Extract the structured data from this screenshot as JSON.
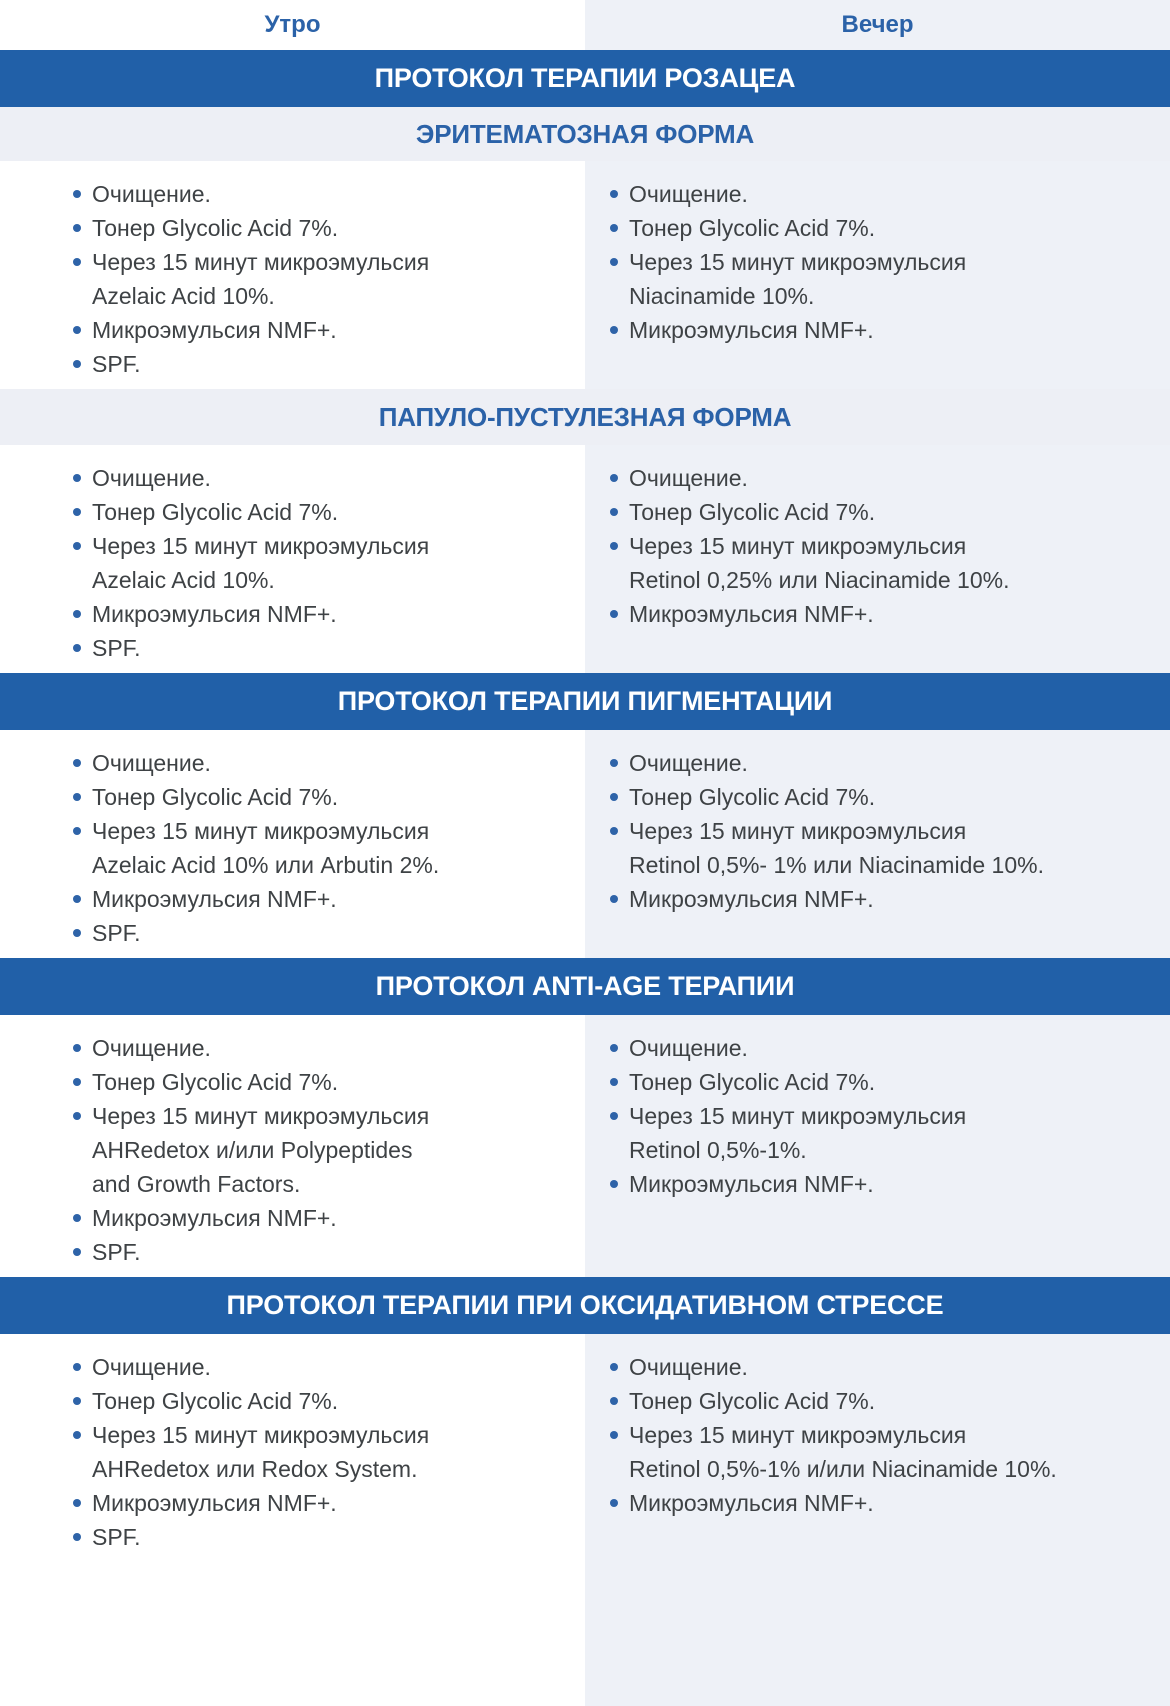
{
  "columns": {
    "morning": "Утро",
    "evening": "Вечер"
  },
  "banners": {
    "rosacea": "ПРОТОКОЛ ТЕРАПИИ РОЗАЦЕА",
    "pigmentation": "ПРОТОКОЛ ТЕРАПИИ ПИГМЕНТАЦИИ",
    "antiage": "ПРОТОКОЛ ANTI-AGE ТЕРАПИИ",
    "oxidative": "ПРОТОКОЛ ТЕРАПИИ ПРИ ОКСИДАТИВНОМ СТРЕССЕ"
  },
  "subheaders": {
    "erythematous": "ЭРИТЕМАТОЗНАЯ ФОРМА",
    "papulopustular": "ПАПУЛО-ПУСТУЛЕЗНАЯ ФОРМА"
  },
  "protocol_rows": {
    "rosacea_erythematous": {
      "morning": [
        "Очищение.",
        "Тонер Glycolic Acid 7%.",
        "Через 15 минут микроэмульсия\nAzelaic Acid 10%.",
        "Микроэмульсия NMF+.",
        "SPF."
      ],
      "evening": [
        "Очищение.",
        "Тонер Glycolic Acid 7%.",
        "Через 15 минут микроэмульсия\nNiacinamide 10%.",
        "Микроэмульсия NMF+."
      ]
    },
    "rosacea_papulopustular": {
      "morning": [
        "Очищение.",
        "Тонер Glycolic Acid 7%.",
        "Через 15 минут микроэмульсия\nAzelaic Acid 10%.",
        "Микроэмульсия NMF+.",
        "SPF."
      ],
      "evening": [
        "Очищение.",
        "Тонер Glycolic Acid 7%.",
        "Через 15 минут микроэмульсия\nRetinol 0,25% или Niacinamide 10%.",
        "Микроэмульсия NMF+."
      ]
    },
    "pigmentation": {
      "morning": [
        "Очищение.",
        "Тонер Glycolic Acid 7%.",
        "Через 15 минут микроэмульсия\nAzelaic Acid 10% или Arbutin 2%.",
        "Микроэмульсия NMF+.",
        "SPF."
      ],
      "evening": [
        "Очищение.",
        "Тонер Glycolic Acid 7%.",
        "Через 15 минут микроэмульсия\nRetinol 0,5%- 1% или Niacinamide 10%.",
        "Микроэмульсия NMF+."
      ]
    },
    "antiage": {
      "morning": [
        "Очищение.",
        "Тонер Glycolic Acid 7%.",
        "Через 15 минут микроэмульсия\nAHRedetox и/или Polypeptides\nand Growth Factors.",
        "Микроэмульсия NMF+.",
        "SPF."
      ],
      "evening": [
        "Очищение.",
        "Тонер Glycolic Acid 7%.",
        "Через 15 минут микроэмульсия\nRetinol 0,5%-1%.",
        "Микроэмульсия NMF+."
      ]
    },
    "oxidative": {
      "morning": [
        "Очищение.",
        "Тонер Glycolic Acid 7%.",
        "Через 15 минут микроэмульсия\nAHRedetox или Redox System.",
        "Микроэмульсия NMF+.",
        "SPF."
      ],
      "evening": [
        "Очищение.",
        "Тонер Glycolic Acid 7%.",
        "Через 15 минут микроэмульсия\nRetinol 0,5%-1% и/или Niacinamide 10%.",
        "Микроэмульсия NMF+."
      ]
    }
  },
  "colors": {
    "banner_bg": "#2160A8",
    "banner_text": "#FFFFFF",
    "heading_blue": "#2B62A8",
    "subband_bg": "#EDEFF5",
    "evening_column_bg": "#EEF1F7",
    "body_text": "#3E4245",
    "bullet_dot": "#2E63A8"
  }
}
